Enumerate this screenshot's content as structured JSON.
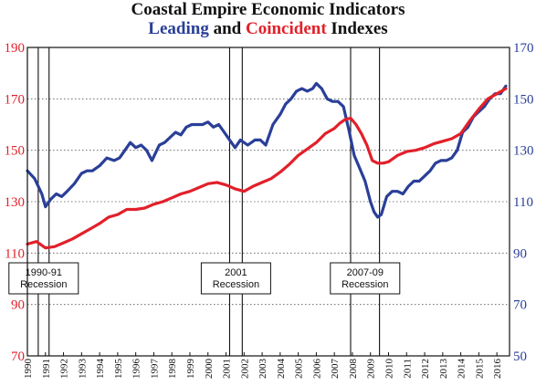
{
  "chart_data": {
    "type": "line",
    "title": "Coastal Empire Economic Indicators",
    "subtitle_parts": {
      "leading": "Leading",
      "and": "and",
      "coincident": "Coincident",
      "indexes": "Indexes"
    },
    "left_axis": {
      "ylim": [
        70,
        190
      ],
      "ticks": [
        "70",
        "90",
        "110",
        "130",
        "150",
        "170",
        "190"
      ],
      "color": "#e2202a"
    },
    "right_axis": {
      "ylim": [
        50,
        170
      ],
      "ticks": [
        "50",
        "70",
        "90",
        "110",
        "130",
        "150",
        "170"
      ],
      "color": "#2a3f98"
    },
    "x_axis": {
      "xlim": [
        1990,
        2016.7
      ],
      "tick_labels": [
        "1990",
        "1991",
        "1992",
        "1993",
        "1994",
        "1995",
        "1996",
        "1997",
        "1998",
        "1999",
        "2000",
        "2001",
        "2002",
        "2003",
        "2004",
        "2005",
        "2006",
        "2007",
        "2008",
        "2009",
        "2010",
        "2011",
        "2012",
        "2013",
        "2014",
        "2015",
        "2016"
      ]
    },
    "grid": "horizontal-dotted",
    "recessions": [
      {
        "start": 1990.6,
        "end": 1991.2,
        "label": [
          "1990-91",
          "Recession"
        ]
      },
      {
        "start": 2001.2,
        "end": 2001.9,
        "label": [
          "2001",
          "Recession"
        ]
      },
      {
        "start": 2007.9,
        "end": 2009.5,
        "label": [
          "2007-09",
          "Recession"
        ]
      }
    ],
    "series": [
      {
        "name": "Leading",
        "axis": "right",
        "color": "#2a3f98",
        "x": [
          1990.0,
          1990.4,
          1990.8,
          1991.0,
          1991.3,
          1991.6,
          1991.9,
          1992.2,
          1992.6,
          1993.0,
          1993.3,
          1993.6,
          1994.0,
          1994.4,
          1994.8,
          1995.1,
          1995.4,
          1995.7,
          1996.0,
          1996.3,
          1996.6,
          1996.9,
          1997.1,
          1997.3,
          1997.6,
          1997.9,
          1998.2,
          1998.5,
          1998.8,
          1999.1,
          1999.4,
          1999.7,
          2000.0,
          2000.3,
          2000.6,
          2000.9,
          2001.2,
          2001.5,
          2001.8,
          2002.2,
          2002.6,
          2002.9,
          2003.2,
          2003.6,
          2004.0,
          2004.3,
          2004.6,
          2004.9,
          2005.2,
          2005.5,
          2005.8,
          2006.0,
          2006.3,
          2006.6,
          2006.9,
          2007.2,
          2007.5,
          2007.8,
          2008.1,
          2008.4,
          2008.7,
          2009.0,
          2009.2,
          2009.4,
          2009.6,
          2009.9,
          2010.2,
          2010.5,
          2010.8,
          2011.1,
          2011.4,
          2011.7,
          2012.0,
          2012.3,
          2012.6,
          2012.9,
          2013.2,
          2013.5,
          2013.8,
          2014.1,
          2014.4,
          2014.7,
          2015.0,
          2015.3,
          2015.6,
          2015.9,
          2016.2,
          2016.5
        ],
        "values": [
          122,
          119,
          113,
          108,
          111,
          113,
          112,
          114,
          117,
          121,
          122,
          122,
          124,
          127,
          126,
          127,
          130,
          133,
          131,
          132,
          130,
          126,
          129,
          132,
          133,
          135,
          137,
          136,
          139,
          140,
          140,
          140,
          141,
          139,
          140,
          137,
          134,
          131,
          134,
          132,
          134,
          134,
          132,
          140,
          144,
          148,
          150,
          153,
          154,
          153,
          154,
          156,
          154,
          150,
          149,
          149,
          147,
          138,
          128,
          123,
          118,
          110,
          106,
          104,
          105,
          112,
          114,
          114,
          113,
          116,
          118,
          118,
          120,
          122,
          125,
          126,
          126,
          127,
          130,
          137,
          139,
          143,
          145,
          147,
          150,
          152,
          152,
          155
        ]
      },
      {
        "name": "Coincident",
        "axis": "left",
        "color": "#e2202a",
        "x": [
          1990.0,
          1990.5,
          1991.0,
          1991.5,
          1992.0,
          1992.5,
          1993.0,
          1993.5,
          1994.0,
          1994.5,
          1995.0,
          1995.5,
          1996.0,
          1996.5,
          1997.0,
          1997.5,
          1998.0,
          1998.5,
          1999.0,
          1999.5,
          2000.0,
          2000.5,
          2001.0,
          2001.5,
          2002.0,
          2002.5,
          2003.0,
          2003.5,
          2004.0,
          2004.5,
          2005.0,
          2005.5,
          2006.0,
          2006.5,
          2007.0,
          2007.3,
          2007.6,
          2007.9,
          2008.2,
          2008.5,
          2008.8,
          2009.1,
          2009.4,
          2009.7,
          2010.0,
          2010.5,
          2011.0,
          2011.5,
          2012.0,
          2012.5,
          2013.0,
          2013.5,
          2014.0,
          2014.5,
          2015.0,
          2015.5,
          2016.0,
          2016.5
        ],
        "values": [
          113.5,
          114.5,
          112.0,
          112.5,
          114.0,
          115.5,
          117.5,
          119.5,
          121.5,
          124.0,
          125.0,
          127.0,
          127.0,
          127.5,
          129.0,
          130.0,
          131.5,
          133.0,
          134.0,
          135.5,
          137.0,
          137.5,
          136.5,
          135.0,
          134.0,
          136.0,
          137.5,
          139.0,
          141.5,
          144.5,
          148.0,
          150.5,
          153.0,
          156.5,
          158.5,
          160.5,
          162.0,
          162.5,
          160.0,
          156.5,
          152.0,
          146.0,
          145.0,
          145.0,
          145.5,
          148.0,
          149.5,
          150.0,
          151.0,
          152.5,
          153.5,
          154.5,
          156.5,
          161.5,
          166.0,
          170.0,
          172.0,
          174.0
        ]
      }
    ]
  }
}
